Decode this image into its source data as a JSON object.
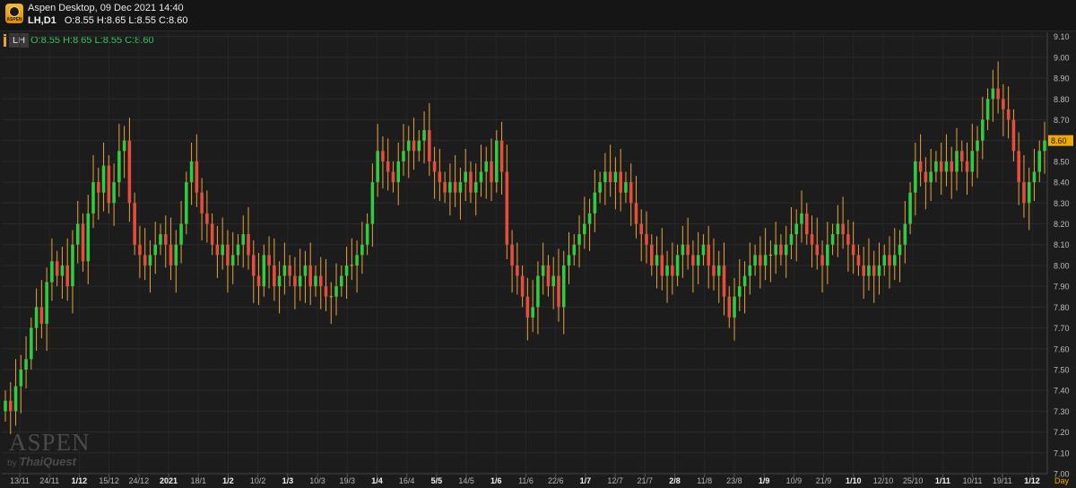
{
  "window": {
    "app_title": "Aspen Desktop, 09 Dec 2021 14:40",
    "logo_text": "ASPEN",
    "symbol_timeframe": "LH,D1",
    "ohlc_text": "O:8.55 H:8.65 L:8.55 C:8.60"
  },
  "legend": {
    "symbol": "LH",
    "values": "O:8.55 H:8.65 L:8.55 C:8.60",
    "color": "#e8a33a"
  },
  "watermark": {
    "main": "ASPEN",
    "by": "by",
    "brand": "ThaiQuest"
  },
  "price_tag": "8.60",
  "timeframe_label": "Day",
  "colors": {
    "background": "#1c1c1c",
    "up": "#2ecc40",
    "down": "#e74c3c",
    "wick": "#e8a33a",
    "current_price": "#f2a900"
  },
  "chart_data": {
    "type": "candlestick",
    "title": "LH,D1",
    "ylim": [
      7.0,
      9.12
    ],
    "y_ticks": [
      "9.10",
      "9.00",
      "8.90",
      "8.80",
      "8.70",
      "8.60",
      "8.50",
      "8.40",
      "8.30",
      "8.20",
      "8.10",
      "8.00",
      "7.90",
      "7.80",
      "7.70",
      "7.60",
      "7.50",
      "7.40",
      "7.30",
      "7.20",
      "7.10",
      "7.00"
    ],
    "x_ticks": [
      {
        "label": "13/11",
        "bold": false
      },
      {
        "label": "24/11",
        "bold": false
      },
      {
        "label": "1/12",
        "bold": true
      },
      {
        "label": "15/12",
        "bold": false
      },
      {
        "label": "24/12",
        "bold": false
      },
      {
        "label": "2021",
        "bold": true
      },
      {
        "label": "18/1",
        "bold": false
      },
      {
        "label": "1/2",
        "bold": true
      },
      {
        "label": "10/2",
        "bold": false
      },
      {
        "label": "1/3",
        "bold": true
      },
      {
        "label": "10/3",
        "bold": false
      },
      {
        "label": "19/3",
        "bold": false
      },
      {
        "label": "1/4",
        "bold": true
      },
      {
        "label": "16/4",
        "bold": false
      },
      {
        "label": "5/5",
        "bold": true
      },
      {
        "label": "14/5",
        "bold": false
      },
      {
        "label": "1/6",
        "bold": true
      },
      {
        "label": "11/6",
        "bold": false
      },
      {
        "label": "22/6",
        "bold": false
      },
      {
        "label": "1/7",
        "bold": true
      },
      {
        "label": "12/7",
        "bold": false
      },
      {
        "label": "21/7",
        "bold": false
      },
      {
        "label": "2/8",
        "bold": true
      },
      {
        "label": "11/8",
        "bold": false
      },
      {
        "label": "23/8",
        "bold": false
      },
      {
        "label": "1/9",
        "bold": true
      },
      {
        "label": "10/9",
        "bold": false
      },
      {
        "label": "21/9",
        "bold": false
      },
      {
        "label": "1/10",
        "bold": true
      },
      {
        "label": "12/10",
        "bold": false
      },
      {
        "label": "25/10",
        "bold": false
      },
      {
        "label": "1/11",
        "bold": true
      },
      {
        "label": "10/11",
        "bold": false
      },
      {
        "label": "19/11",
        "bold": false
      },
      {
        "label": "1/12",
        "bold": true
      }
    ],
    "current_price": 8.6,
    "closes": [
      7.35,
      7.3,
      7.42,
      7.5,
      7.55,
      7.7,
      7.8,
      7.72,
      7.92,
      8.02,
      7.95,
      8.0,
      7.9,
      8.1,
      8.2,
      8.02,
      8.25,
      8.4,
      8.35,
      8.48,
      8.3,
      8.4,
      8.55,
      8.6,
      8.3,
      8.1,
      8.05,
      8.0,
      8.05,
      8.1,
      8.15,
      8.1,
      8.0,
      8.1,
      8.2,
      8.4,
      8.5,
      8.35,
      8.25,
      8.2,
      8.1,
      8.05,
      8.1,
      8.0,
      8.05,
      8.1,
      8.15,
      8.05,
      7.95,
      7.9,
      8.05,
      8.0,
      7.9,
      7.95,
      8.0,
      7.95,
      7.9,
      7.95,
      8.0,
      7.9,
      7.95,
      7.9,
      7.85,
      7.85,
      7.9,
      7.95,
      8.0,
      8.0,
      8.05,
      8.1,
      8.2,
      8.4,
      8.55,
      8.5,
      8.45,
      8.4,
      8.5,
      8.55,
      8.6,
      8.55,
      8.6,
      8.65,
      8.5,
      8.45,
      8.4,
      8.35,
      8.4,
      8.35,
      8.4,
      8.45,
      8.35,
      8.4,
      8.45,
      8.5,
      8.4,
      8.6,
      8.45,
      8.1,
      8.0,
      7.95,
      7.85,
      7.75,
      7.8,
      7.95,
      8.0,
      7.9,
      7.95,
      7.8,
      8.0,
      8.05,
      8.1,
      8.15,
      8.2,
      8.25,
      8.35,
      8.4,
      8.45,
      8.4,
      8.45,
      8.35,
      8.4,
      8.3,
      8.2,
      8.15,
      8.1,
      8.0,
      8.05,
      7.95,
      8.0,
      7.95,
      8.05,
      8.1,
      8.05,
      8.0,
      8.05,
      8.1,
      8.0,
      7.95,
      8.0,
      7.85,
      7.75,
      7.85,
      7.9,
      7.95,
      8.0,
      8.05,
      8.0,
      8.05,
      8.05,
      8.1,
      8.05,
      8.1,
      8.15,
      8.2,
      8.25,
      8.15,
      8.1,
      8.05,
      8.0,
      8.1,
      8.15,
      8.2,
      8.15,
      8.1,
      8.05,
      8.0,
      7.95,
      8.0,
      7.95,
      8.0,
      8.05,
      8.0,
      8.05,
      8.1,
      8.2,
      8.35,
      8.5,
      8.45,
      8.4,
      8.45,
      8.5,
      8.45,
      8.5,
      8.45,
      8.55,
      8.5,
      8.45,
      8.55,
      8.6,
      8.7,
      8.8,
      8.85,
      8.8,
      8.75,
      8.7,
      8.55,
      8.4,
      8.3,
      8.4,
      8.45,
      8.55,
      8.6
    ]
  }
}
